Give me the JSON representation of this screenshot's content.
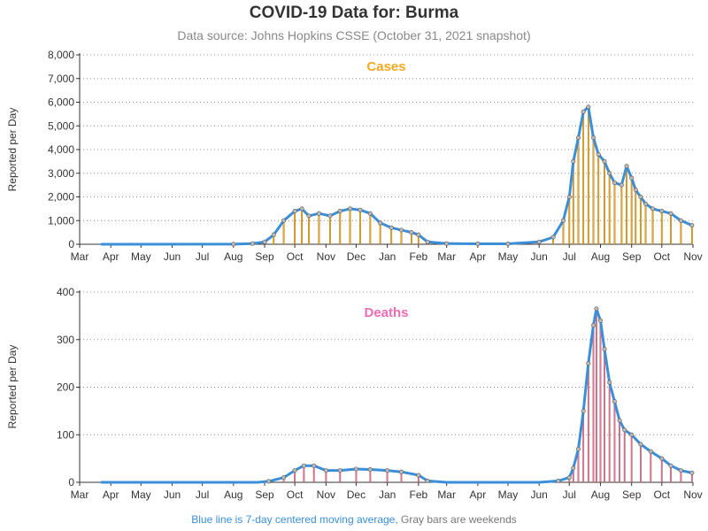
{
  "title": "COVID-19 Data for: Burma",
  "subtitle": "Data source: Johns Hopkins CSSE (October 31, 2021 snapshot)",
  "footnote": {
    "blue_text": "Blue line is 7-day centered moving average,",
    "gray_text": "Gray bars are weekends"
  },
  "colors": {
    "cases_bar": "#f5a81c",
    "deaths_bar": "#f06ab5",
    "moving_average": "#3b8fd9",
    "weekend_bar": "#9a9a9a",
    "marker_fill": "#bbbbbb",
    "marker_stroke": "#555555",
    "grid": "#888888",
    "axis_text": "#333333"
  },
  "chart_data": [
    {
      "type": "bar",
      "title": "Cases",
      "title_color": "#f5a81c",
      "xlabel": "",
      "ylabel": "Reported per Day",
      "ylim": [
        0,
        8000
      ],
      "yticks": [
        0,
        1000,
        2000,
        3000,
        4000,
        5000,
        6000,
        7000,
        8000
      ],
      "ytick_labels": [
        "0",
        "1,000",
        "2,000",
        "3,000",
        "4,000",
        "5,000",
        "6,000",
        "7,000",
        "8,000"
      ],
      "xlim": [
        "2020-03-01",
        "2021-11-01"
      ],
      "xtick_dates": [
        "2020-03-01",
        "2020-04-01",
        "2020-05-01",
        "2020-06-01",
        "2020-07-01",
        "2020-08-01",
        "2020-09-01",
        "2020-10-01",
        "2020-11-01",
        "2020-12-01",
        "2021-01-01",
        "2021-02-01",
        "2021-03-01",
        "2021-04-01",
        "2021-05-01",
        "2021-06-01",
        "2021-07-01",
        "2021-08-01",
        "2021-09-01",
        "2021-10-01",
        "2021-11-01"
      ],
      "xtick_labels": [
        "Mar",
        "Apr",
        "May",
        "Jun",
        "Jul",
        "Aug",
        "Sep",
        "Oct",
        "Nov",
        "Dec",
        "Jan",
        "Feb",
        "Mar",
        "Apr",
        "May",
        "Jun",
        "Jul",
        "Aug",
        "Sep",
        "Oct",
        "Nov"
      ],
      "grid": "horizontal-dotted",
      "series": [
        {
          "x": [
            "2020-03-23",
            "2020-08-01",
            "2020-08-20",
            "2020-09-01",
            "2020-09-10",
            "2020-09-20",
            "2020-10-01",
            "2020-10-08",
            "2020-10-15",
            "2020-10-25",
            "2020-11-05",
            "2020-11-15",
            "2020-11-25",
            "2020-12-05",
            "2020-12-15",
            "2020-12-25",
            "2021-01-05",
            "2021-01-15",
            "2021-01-25",
            "2021-02-01",
            "2021-02-10",
            "2021-03-01",
            "2021-04-01",
            "2021-05-01",
            "2021-06-01",
            "2021-06-15",
            "2021-06-25",
            "2021-07-01",
            "2021-07-05",
            "2021-07-10",
            "2021-07-15",
            "2021-07-20",
            "2021-07-25",
            "2021-07-30",
            "2021-08-05",
            "2021-08-10",
            "2021-08-15",
            "2021-08-22",
            "2021-08-27",
            "2021-09-01",
            "2021-09-05",
            "2021-09-10",
            "2021-09-15",
            "2021-09-22",
            "2021-10-01",
            "2021-10-10",
            "2021-10-20",
            "2021-10-31"
          ],
          "values": [
            0,
            5,
            30,
            100,
            400,
            1000,
            1400,
            1500,
            1200,
            1300,
            1200,
            1400,
            1500,
            1450,
            1300,
            900,
            700,
            600,
            500,
            400,
            100,
            30,
            20,
            20,
            100,
            300,
            1000,
            2000,
            3500,
            4500,
            5600,
            5800,
            4500,
            3800,
            3500,
            3000,
            2600,
            2500,
            3300,
            2800,
            2300,
            2000,
            1700,
            1500,
            1400,
            1300,
            1000,
            800
          ]
        }
      ]
    },
    {
      "type": "bar",
      "title": "Deaths",
      "title_color": "#f06ab5",
      "xlabel": "",
      "ylabel": "Reported per Day",
      "ylim": [
        0,
        400
      ],
      "yticks": [
        0,
        100,
        200,
        300,
        400
      ],
      "ytick_labels": [
        "0",
        "100",
        "200",
        "300",
        "400"
      ],
      "xlim": [
        "2020-03-01",
        "2021-11-01"
      ],
      "xtick_dates": [
        "2020-03-01",
        "2020-04-01",
        "2020-05-01",
        "2020-06-01",
        "2020-07-01",
        "2020-08-01",
        "2020-09-01",
        "2020-10-01",
        "2020-11-01",
        "2020-12-01",
        "2021-01-01",
        "2021-02-01",
        "2021-03-01",
        "2021-04-01",
        "2021-05-01",
        "2021-06-01",
        "2021-07-01",
        "2021-08-01",
        "2021-09-01",
        "2021-10-01",
        "2021-11-01"
      ],
      "xtick_labels": [
        "Mar",
        "Apr",
        "May",
        "Jun",
        "Jul",
        "Aug",
        "Sep",
        "Oct",
        "Nov",
        "Dec",
        "Jan",
        "Feb",
        "Mar",
        "Apr",
        "May",
        "Jun",
        "Jul",
        "Aug",
        "Sep",
        "Oct",
        "Nov"
      ],
      "grid": "horizontal-dotted",
      "series": [
        {
          "x": [
            "2020-03-23",
            "2020-08-25",
            "2020-09-05",
            "2020-09-20",
            "2020-10-01",
            "2020-10-10",
            "2020-10-20",
            "2020-11-01",
            "2020-11-15",
            "2020-12-01",
            "2020-12-15",
            "2021-01-01",
            "2021-01-15",
            "2021-02-01",
            "2021-02-10",
            "2021-03-01",
            "2021-04-01",
            "2021-05-01",
            "2021-06-01",
            "2021-06-20",
            "2021-07-01",
            "2021-07-05",
            "2021-07-10",
            "2021-07-15",
            "2021-07-20",
            "2021-07-25",
            "2021-07-28",
            "2021-08-01",
            "2021-08-05",
            "2021-08-10",
            "2021-08-15",
            "2021-08-20",
            "2021-08-25",
            "2021-09-01",
            "2021-09-10",
            "2021-09-20",
            "2021-10-01",
            "2021-10-10",
            "2021-10-20",
            "2021-10-31"
          ],
          "values": [
            0,
            0,
            2,
            10,
            25,
            35,
            35,
            25,
            25,
            28,
            27,
            25,
            22,
            15,
            3,
            0,
            0,
            0,
            0,
            3,
            10,
            30,
            70,
            150,
            250,
            330,
            365,
            340,
            280,
            210,
            170,
            130,
            110,
            100,
            80,
            65,
            50,
            35,
            25,
            20
          ]
        }
      ]
    }
  ]
}
